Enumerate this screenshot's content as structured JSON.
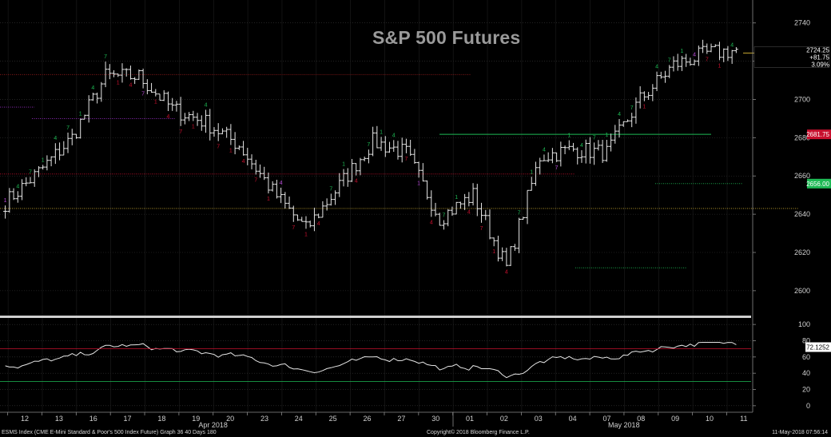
{
  "chart_data": {
    "type": "candlestick",
    "title": "S&P 500 Futures",
    "interval_minutes": 36,
    "price_axis": {
      "ticks": [
        2600,
        2620,
        2640,
        2660,
        2680,
        2700,
        2720,
        2740
      ],
      "ylim": [
        2587,
        2752
      ]
    },
    "indicator_axis": {
      "ticks": [
        0,
        20,
        40,
        60,
        80,
        100
      ],
      "ylim": [
        -8,
        108
      ]
    },
    "x_axis": {
      "day_labels": [
        "12",
        "13",
        "16",
        "17",
        "18",
        "19",
        "20",
        "23",
        "24",
        "25",
        "26",
        "27",
        "30",
        "01",
        "02",
        "03",
        "04",
        "07",
        "08",
        "09",
        "10",
        "11"
      ],
      "month_labels": [
        {
          "label": "Apr 2018",
          "after_day": "19"
        },
        {
          "label": "May 2018",
          "after_day": "07"
        }
      ]
    },
    "last_price": {
      "price": "2724.25",
      "change": "+81.75",
      "change_pct": "3.09%",
      "color": "#ffffff",
      "value": 2724.25
    },
    "price_tags": [
      {
        "label": "2681.75",
        "value": 2681.75,
        "color": "#c8102e"
      },
      {
        "label": "2656.00",
        "value": 2656.0,
        "color": "#1db954"
      }
    ],
    "indicator_tag": {
      "label": "72.1252",
      "value": 72.1252
    },
    "anchors": [
      [
        "12",
        2646
      ],
      [
        "13",
        2662
      ],
      [
        "16",
        2680
      ],
      [
        "17",
        2712
      ],
      [
        "18",
        2712
      ],
      [
        "19",
        2695
      ],
      [
        "20",
        2688
      ],
      [
        "23",
        2676
      ],
      [
        "24",
        2652
      ],
      [
        "25",
        2632
      ],
      [
        "26",
        2655
      ],
      [
        "27",
        2678
      ],
      [
        "30",
        2672
      ],
      [
        "01",
        2638
      ],
      [
        "02",
        2650
      ],
      [
        "03",
        2612
      ],
      [
        "04",
        2670
      ],
      [
        "07",
        2674
      ],
      [
        "08",
        2672
      ],
      [
        "09",
        2700
      ],
      [
        "10",
        2718
      ],
      [
        "11",
        2724
      ]
    ],
    "horizontal_levels": [
      {
        "value": 2713,
        "color": "#8b1a1a",
        "style": "dotted"
      },
      {
        "value": 2681.75,
        "color": "#1db954",
        "style": "solid"
      },
      {
        "value": 2661,
        "color": "#c8102e",
        "style": "dotted"
      },
      {
        "value": 2643,
        "color": "#c8a830",
        "style": "dotted"
      },
      {
        "value": 2656,
        "color": "#1db954",
        "style": "dotted"
      },
      {
        "value": 2612,
        "color": "#1db954",
        "style": "dotted"
      },
      {
        "value": 2724.25,
        "color": "#c8a830",
        "style": "solid"
      },
      {
        "value": 2696,
        "color": "#9b30c8",
        "style": "dotted"
      },
      {
        "value": 2690,
        "color": "#9b30c8",
        "style": "dotted"
      }
    ],
    "indicator_levels": [
      {
        "value": 70,
        "color": "#c8102e"
      },
      {
        "value": 30,
        "color": "#1db954"
      }
    ],
    "colors": {
      "bars": "#e6e6e6",
      "indicator": "#e6e6e6",
      "grid": "#3a3a3a",
      "background": "#000000",
      "td_green": "#1db954",
      "td_red": "#c8102e",
      "td_purple": "#b84ad8"
    }
  },
  "footer": {
    "left": "ESMS Index (CME E-Mini Standard & Poor's 500 Index Future) Graph 36 40 Days 180",
    "center": "Copyright© 2018 Bloomberg Finance L.P.",
    "right": "11-May-2018 07:56:14"
  }
}
